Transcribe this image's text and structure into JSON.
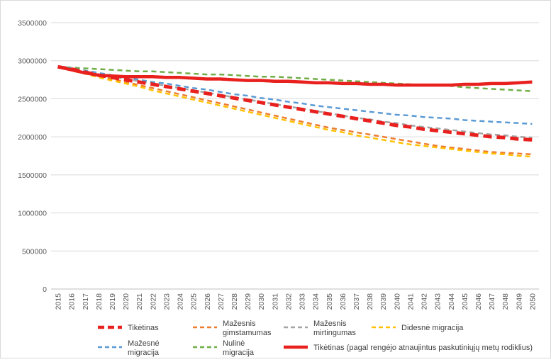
{
  "chart_data": {
    "type": "line",
    "title": "",
    "xlabel": "",
    "ylabel": "",
    "ylim": [
      0,
      3500000
    ],
    "yticks": [
      "3500000",
      "3000000",
      "2500000",
      "2000000",
      "1500000",
      "1000000",
      "500000",
      "0"
    ],
    "grid": "horizontal",
    "legend_position": "bottom",
    "x": [
      "2015",
      "2016",
      "2017",
      "2018",
      "2019",
      "2020",
      "2021",
      "2022",
      "2023",
      "2024",
      "2025",
      "2026",
      "2027",
      "2028",
      "2029",
      "2030",
      "2031",
      "2032",
      "2033",
      "2034",
      "2035",
      "2036",
      "2037",
      "2038",
      "2039",
      "2040",
      "2041",
      "2042",
      "2043",
      "2044",
      "2045",
      "2046",
      "2047",
      "2048",
      "2049",
      "2050"
    ],
    "series": [
      {
        "name": "Tikėtinas",
        "color": "#e8201e",
        "dash": "heavy-dash",
        "values": [
          2920000,
          2890000,
          2850000,
          2810000,
          2780000,
          2750000,
          2720000,
          2690000,
          2660000,
          2630000,
          2600000,
          2570000,
          2540000,
          2510000,
          2480000,
          2450000,
          2420000,
          2390000,
          2360000,
          2330000,
          2300000,
          2270000,
          2240000,
          2210000,
          2180000,
          2150000,
          2130000,
          2100000,
          2080000,
          2060000,
          2040000,
          2020000,
          2000000,
          1990000,
          1970000,
          1960000
        ]
      },
      {
        "name": "Mažesnis gimstamumas",
        "color": "#ed7d31",
        "dash": "dash",
        "values": [
          2920000,
          2880000,
          2840000,
          2800000,
          2760000,
          2720000,
          2680000,
          2640000,
          2600000,
          2560000,
          2520000,
          2480000,
          2440000,
          2400000,
          2360000,
          2320000,
          2280000,
          2240000,
          2200000,
          2160000,
          2120000,
          2090000,
          2060000,
          2030000,
          2000000,
          1970000,
          1940000,
          1910000,
          1880000,
          1860000,
          1840000,
          1820000,
          1800000,
          1790000,
          1780000,
          1770000
        ]
      },
      {
        "name": "Mažesnis mirtingumas",
        "color": "#a5a5a5",
        "dash": "dash",
        "values": [
          2920000,
          2890000,
          2860000,
          2820000,
          2790000,
          2760000,
          2730000,
          2700000,
          2670000,
          2640000,
          2610000,
          2580000,
          2550000,
          2520000,
          2490000,
          2460000,
          2430000,
          2400000,
          2370000,
          2340000,
          2310000,
          2280000,
          2250000,
          2230000,
          2200000,
          2180000,
          2150000,
          2130000,
          2110000,
          2090000,
          2070000,
          2050000,
          2030000,
          2020000,
          2000000,
          1990000
        ]
      },
      {
        "name": "Didesnė migracija",
        "color": "#ffc000",
        "dash": "dash",
        "values": [
          2920000,
          2870000,
          2830000,
          2780000,
          2740000,
          2700000,
          2660000,
          2610000,
          2570000,
          2530000,
          2490000,
          2450000,
          2410000,
          2370000,
          2330000,
          2290000,
          2250000,
          2210000,
          2170000,
          2130000,
          2090000,
          2060000,
          2020000,
          1990000,
          1960000,
          1930000,
          1900000,
          1880000,
          1860000,
          1840000,
          1820000,
          1800000,
          1780000,
          1770000,
          1750000,
          1740000
        ]
      },
      {
        "name": "Mažesnė migracija",
        "color": "#5b9bd5",
        "dash": "dash",
        "values": [
          2920000,
          2900000,
          2870000,
          2840000,
          2810000,
          2780000,
          2750000,
          2720000,
          2700000,
          2670000,
          2640000,
          2620000,
          2590000,
          2560000,
          2540000,
          2510000,
          2490000,
          2460000,
          2440000,
          2410000,
          2390000,
          2370000,
          2350000,
          2330000,
          2310000,
          2290000,
          2280000,
          2260000,
          2250000,
          2240000,
          2220000,
          2210000,
          2200000,
          2190000,
          2180000,
          2170000
        ]
      },
      {
        "name": "Nulinė migracija",
        "color": "#70ad47",
        "dash": "dash",
        "values": [
          2920000,
          2910000,
          2900000,
          2890000,
          2880000,
          2870000,
          2860000,
          2860000,
          2850000,
          2840000,
          2830000,
          2820000,
          2820000,
          2810000,
          2800000,
          2790000,
          2790000,
          2780000,
          2770000,
          2760000,
          2750000,
          2740000,
          2730000,
          2720000,
          2710000,
          2700000,
          2690000,
          2680000,
          2680000,
          2670000,
          2650000,
          2640000,
          2630000,
          2620000,
          2610000,
          2600000
        ]
      },
      {
        "name": "Tikėtinas (pagal rengėjo atnaujintus paskutiniųjų metų rodiklius)",
        "color": "#e8201e",
        "dash": "solid",
        "values": [
          2920000,
          2880000,
          2840000,
          2810000,
          2800000,
          2790000,
          2790000,
          2790000,
          2780000,
          2780000,
          2770000,
          2760000,
          2760000,
          2750000,
          2740000,
          2740000,
          2730000,
          2730000,
          2720000,
          2710000,
          2710000,
          2700000,
          2700000,
          2690000,
          2690000,
          2680000,
          2680000,
          2680000,
          2680000,
          2680000,
          2690000,
          2690000,
          2700000,
          2700000,
          2710000,
          2720000
        ]
      }
    ]
  }
}
